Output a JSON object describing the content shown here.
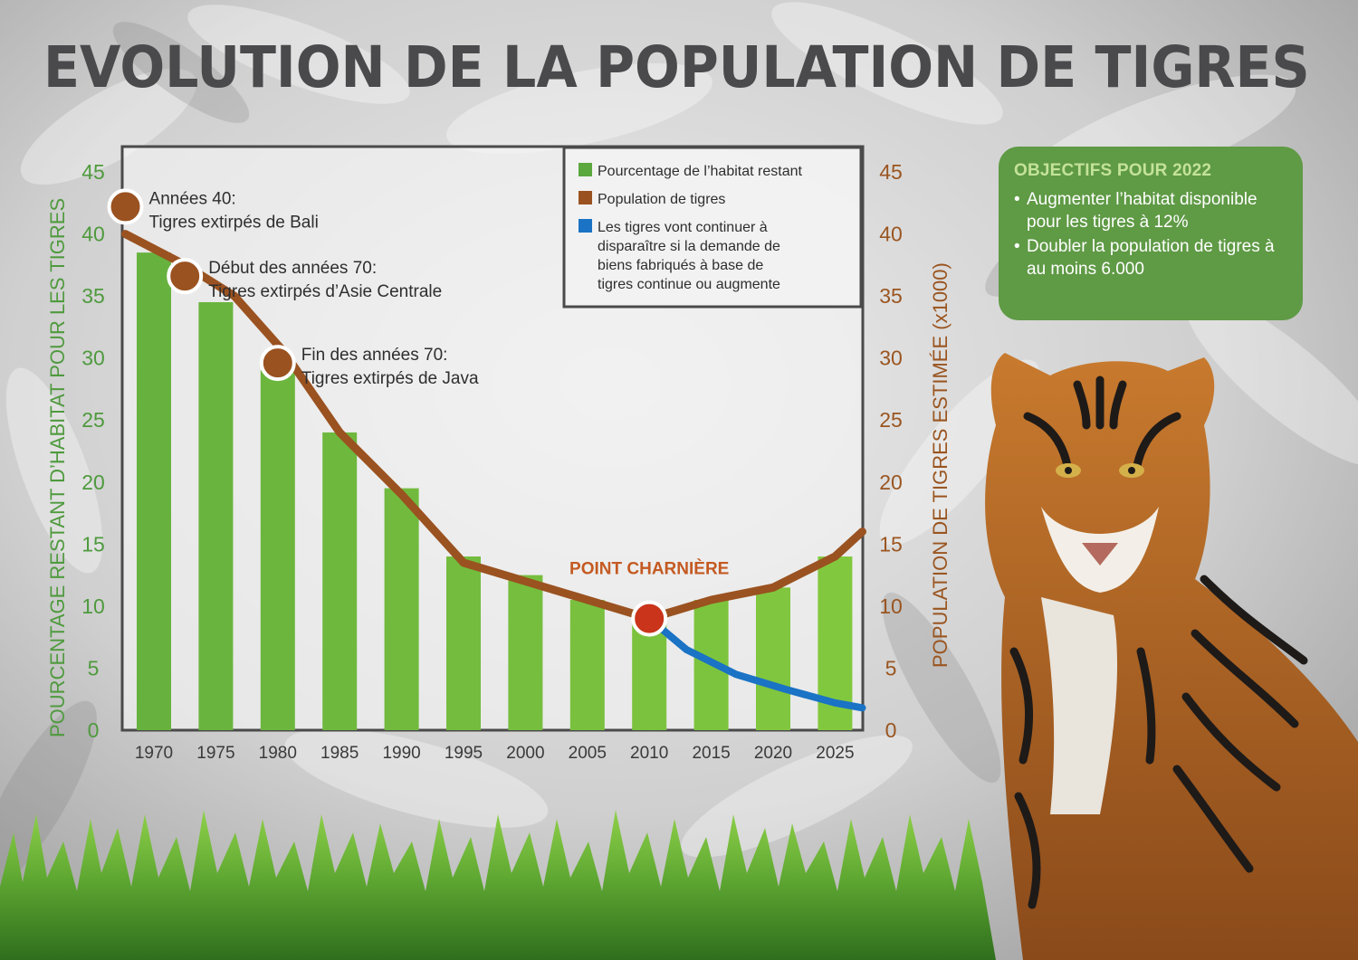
{
  "title": "EVOLUTION DE LA POPULATION DE TIGRES",
  "colors": {
    "habitat_bar": "#4e9a40",
    "population_line": "#9a5220",
    "decline_line": "#1a73c4",
    "pivot_point": "#c9341a",
    "goals_box": "#5f9a45"
  },
  "chart_data": {
    "type": "bar",
    "title": "EVOLUTION DE LA POPULATION DE TIGRES",
    "xlabel": "",
    "ylabel": "POURCENTAGE RESTANT D’HABITAT POUR LES TIGRES",
    "y2label": "POPULATION DE TIGRES ESTIMÉE  (x1000)",
    "ylim": [
      0,
      45
    ],
    "y2lim": [
      0,
      45
    ],
    "yticks": [
      0,
      5,
      10,
      15,
      20,
      25,
      30,
      35,
      40,
      45
    ],
    "categories": [
      "1970",
      "1975",
      "1980",
      "1985",
      "1990",
      "1995",
      "2000",
      "2005",
      "2010",
      "2015",
      "2020",
      "2025"
    ],
    "series": [
      {
        "name": "Pourcentage de l’habitat restant",
        "type": "bar",
        "axis": "left",
        "values": [
          38.5,
          34.5,
          29,
          24,
          19.5,
          14,
          12.5,
          10.5,
          9,
          10.5,
          11.5,
          14
        ]
      },
      {
        "name": "Population de tigres",
        "type": "line",
        "axis": "right",
        "x": [
          1967.7,
          1972.5,
          1976.5,
          1980.5,
          1985,
          1990,
          1995,
          2000,
          2005,
          2010,
          2015,
          2020,
          2025,
          2027.2
        ],
        "values": [
          40,
          37.5,
          35,
          30.5,
          24,
          19,
          13.5,
          12,
          10.5,
          9,
          10.5,
          11.5,
          14,
          16
        ]
      },
      {
        "name": "Les tigres vont continuer à disparaître si la demande de biens fabriqués à base de tigres continue ou augmente",
        "type": "line",
        "axis": "right",
        "x": [
          2010,
          2013,
          2017,
          2021,
          2025,
          2027.2
        ],
        "values": [
          9,
          6.5,
          4.5,
          3.3,
          2.2,
          1.8
        ]
      }
    ],
    "legend": {
      "position": "top-right",
      "entries": [
        "Pourcentage de l’habitat restant",
        "Population de tigres",
        "Les tigres vont continuer à disparaître si la demande de biens fabriqués à base de tigres continue ou augmente"
      ]
    },
    "annotations": [
      {
        "year": 1967.7,
        "value": 42.2,
        "line1": "Années 40:",
        "line2": "Tigres extirpés de Bali"
      },
      {
        "year": 1972.5,
        "value": 36.6,
        "line1": "Début des années 70:",
        "line2": "Tigres extirpés d’Asie Centrale"
      },
      {
        "year": 1980,
        "value": 29.6,
        "line1": "Fin des années 70:",
        "line2": "Tigres extirpés de Java"
      }
    ],
    "pivot": {
      "label": "POINT CHARNIÈRE",
      "year": 2010,
      "value": 9
    }
  },
  "goals": {
    "title": "OBJECTIFS POUR 2022",
    "items": [
      "Augmenter l’habitat disponible pour les tigres à 12%",
      "Doubler la population de tigres à au moins 6.000"
    ]
  }
}
